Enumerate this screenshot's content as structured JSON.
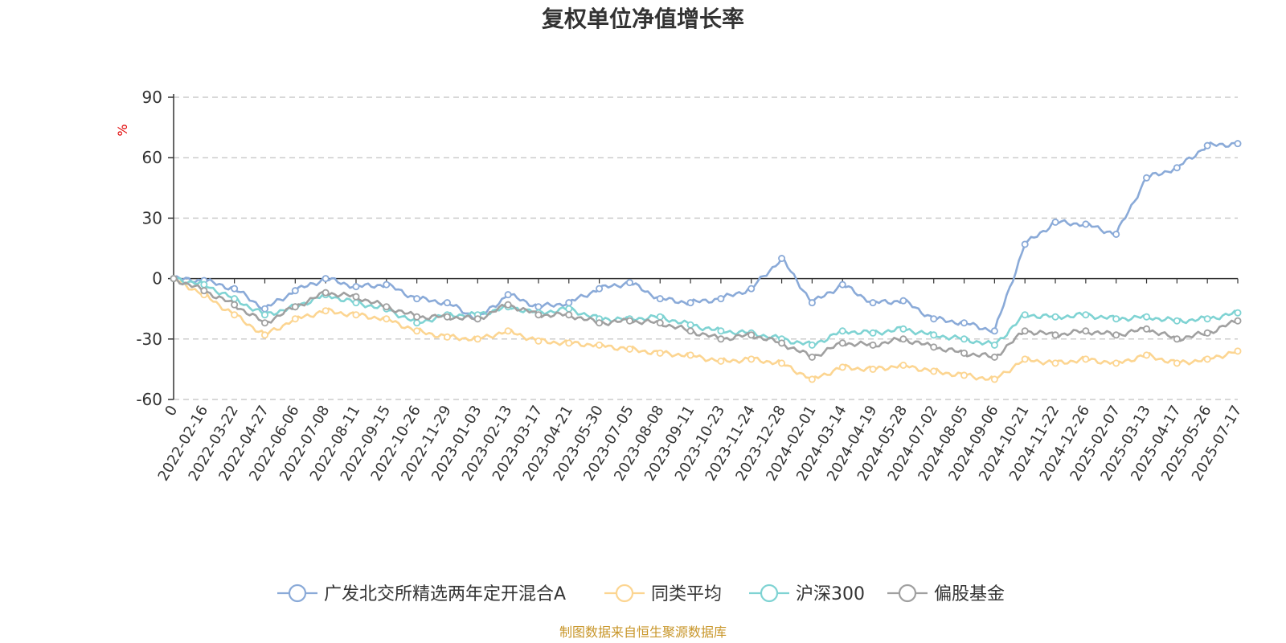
{
  "chart_data": {
    "type": "line",
    "title": "复权单位净值增长率",
    "unit": "%",
    "source": "制图数据来自恒生聚源数据库",
    "ylim": [
      -60,
      90
    ],
    "yticks": [
      "90",
      "60",
      "30",
      "0",
      "-30",
      "-60"
    ],
    "ytick_values": [
      90,
      60,
      30,
      0,
      -30,
      -60
    ],
    "grid": true,
    "legend_position": "bottom",
    "x_categories": [
      "0",
      "2022-02-16",
      "2022-03-22",
      "2022-04-27",
      "2022-06-06",
      "2022-07-08",
      "2022-08-11",
      "2022-09-15",
      "2022-10-26",
      "2022-11-29",
      "2023-01-03",
      "2023-02-13",
      "2023-03-17",
      "2023-04-21",
      "2023-05-30",
      "2023-07-05",
      "2023-08-08",
      "2023-09-11",
      "2023-10-23",
      "2023-11-24",
      "2023-12-28",
      "2024-02-01",
      "2024-03-14",
      "2024-04-19",
      "2024-05-28",
      "2024-07-02",
      "2024-08-05",
      "2024-09-06",
      "2024-10-21",
      "2024-11-22",
      "2024-12-26",
      "2025-02-07",
      "2025-03-13",
      "2025-04-17",
      "2025-05-26",
      "2025-07-17"
    ],
    "series": [
      {
        "name": "广发北交所精选两年定开混合A",
        "color": "#8aaad8",
        "values": [
          0,
          -1,
          -5,
          -15,
          -6,
          0,
          -4,
          -3,
          -10,
          -12,
          -20,
          -8,
          -14,
          -12,
          -5,
          -2,
          -10,
          -12,
          -10,
          -5,
          10,
          -12,
          -3,
          -12,
          -11,
          -20,
          -22,
          -26,
          17,
          28,
          27,
          22,
          50,
          55,
          66,
          67
        ]
      },
      {
        "name": "同类平均",
        "color": "#fcd591",
        "values": [
          0,
          -8,
          -18,
          -28,
          -20,
          -16,
          -18,
          -20,
          -26,
          -29,
          -30,
          -26,
          -31,
          -32,
          -33,
          -35,
          -37,
          -38,
          -41,
          -40,
          -42,
          -50,
          -44,
          -45,
          -43,
          -46,
          -48,
          -50,
          -40,
          -42,
          -40,
          -42,
          -38,
          -42,
          -40,
          -36
        ]
      },
      {
        "name": "沪深300",
        "color": "#7fd3d3",
        "values": [
          0,
          -3,
          -10,
          -18,
          -14,
          -8,
          -12,
          -15,
          -22,
          -18,
          -18,
          -14,
          -17,
          -15,
          -20,
          -20,
          -19,
          -23,
          -26,
          -27,
          -30,
          -33,
          -26,
          -27,
          -25,
          -28,
          -30,
          -33,
          -18,
          -19,
          -18,
          -20,
          -19,
          -21,
          -20,
          -17
        ]
      },
      {
        "name": "偏股基金",
        "color": "#a0a0a0",
        "values": [
          0,
          -6,
          -13,
          -22,
          -14,
          -7,
          -9,
          -14,
          -19,
          -19,
          -20,
          -13,
          -18,
          -18,
          -22,
          -21,
          -22,
          -26,
          -30,
          -28,
          -32,
          -39,
          -32,
          -33,
          -30,
          -34,
          -37,
          -39,
          -26,
          -28,
          -26,
          -28,
          -25,
          -30,
          -27,
          -21
        ]
      }
    ]
  }
}
